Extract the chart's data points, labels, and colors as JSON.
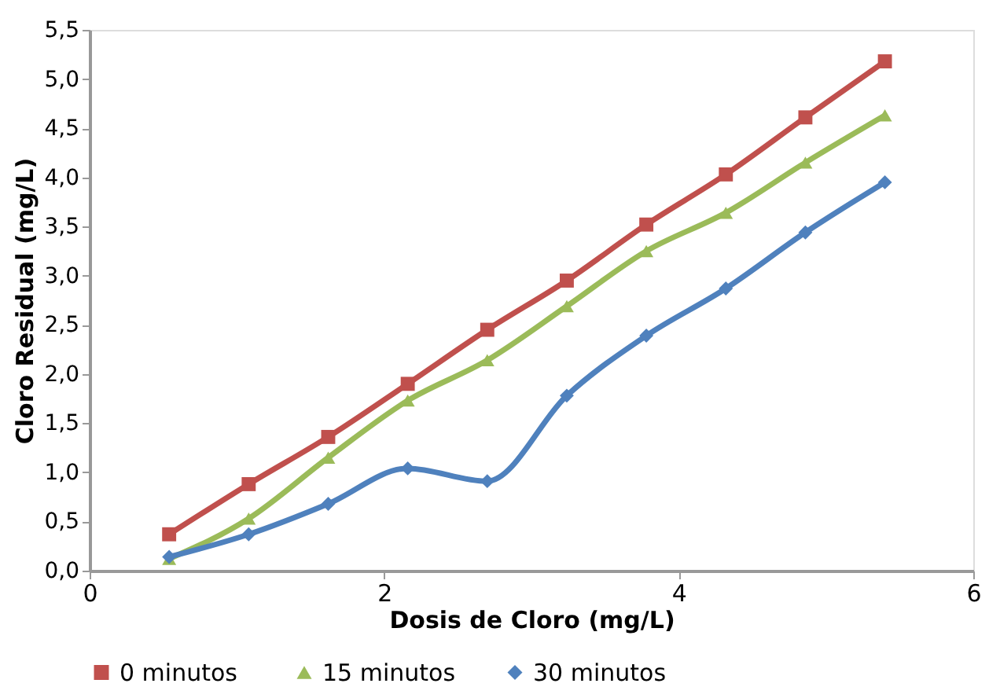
{
  "chart_data": {
    "type": "line",
    "xlabel": "Dosis de Cloro (mg/L)",
    "ylabel": "Cloro Residual (mg/L)",
    "x": [
      0.54,
      1.08,
      1.62,
      2.16,
      2.7,
      3.24,
      3.78,
      4.32,
      4.86,
      5.4
    ],
    "xlim": [
      0,
      6
    ],
    "xticks": [
      0,
      2,
      4,
      6
    ],
    "ylim": [
      0,
      5.5
    ],
    "yticks": [
      {
        "value": 0,
        "label": "0,0"
      },
      {
        "value": 0.5,
        "label": "0,5"
      },
      {
        "value": 1,
        "label": "1,0"
      },
      {
        "value": 1.5,
        "label": "1,5"
      },
      {
        "value": 2,
        "label": "2,0"
      },
      {
        "value": 2.5,
        "label": "2,5"
      },
      {
        "value": 3,
        "label": "3,0"
      },
      {
        "value": 3.5,
        "label": "3,5"
      },
      {
        "value": 4,
        "label": "4,0"
      },
      {
        "value": 4.5,
        "label": "4,5"
      },
      {
        "value": 5,
        "label": "5,0"
      },
      {
        "value": 5.5,
        "label": "5,5"
      }
    ],
    "grid": false,
    "legend": "bottom",
    "line_style": "solid",
    "series": [
      {
        "name": "0  minutos",
        "color": "#c0504d",
        "marker": "square",
        "values": [
          0.37,
          0.88,
          1.36,
          1.9,
          2.45,
          2.95,
          3.52,
          4.03,
          4.61,
          5.18
        ]
      },
      {
        "name": "15 minutos",
        "color": "#9bbb59",
        "marker": "triangle",
        "values": [
          0.12,
          0.53,
          1.15,
          1.73,
          2.14,
          2.69,
          3.25,
          3.64,
          4.15,
          4.63
        ]
      },
      {
        "name": "30 minutos",
        "color": "#4f81bd",
        "marker": "diamond",
        "values": [
          0.14,
          0.37,
          0.68,
          1.04,
          0.91,
          1.78,
          2.39,
          2.87,
          3.44,
          3.95
        ]
      }
    ]
  }
}
